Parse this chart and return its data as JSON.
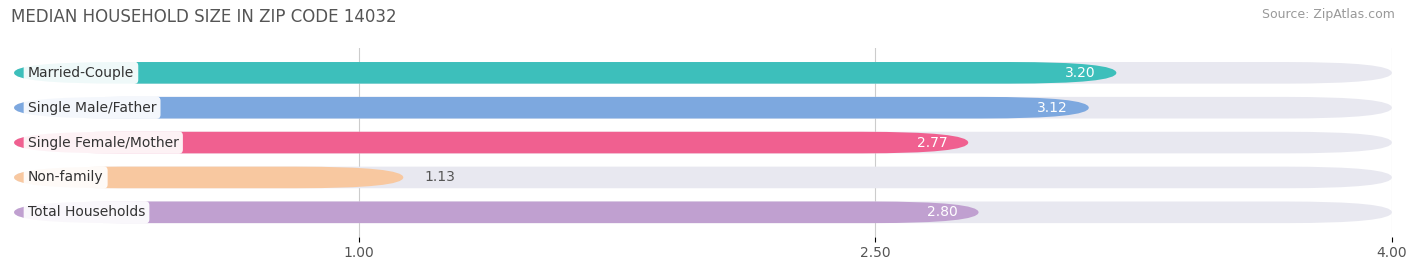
{
  "title": "MEDIAN HOUSEHOLD SIZE IN ZIP CODE 14032",
  "source": "Source: ZipAtlas.com",
  "categories": [
    "Married-Couple",
    "Single Male/Father",
    "Single Female/Mother",
    "Non-family",
    "Total Households"
  ],
  "values": [
    3.2,
    3.12,
    2.77,
    1.13,
    2.8
  ],
  "bar_colors": [
    "#3dbfbb",
    "#7da8df",
    "#f06090",
    "#f8c8a0",
    "#c0a0d0"
  ],
  "track_color": "#e8e8f0",
  "xlim": [
    0,
    4.0
  ],
  "xticks": [
    1.0,
    2.5,
    4.0
  ],
  "title_fontsize": 12,
  "source_fontsize": 9,
  "label_fontsize": 10,
  "value_fontsize": 10,
  "bar_height": 0.62,
  "background_color": "#ffffff",
  "value_inside_threshold": 2.5,
  "value_colors_inside": "#ffffff",
  "value_colors_outside": "#555555"
}
